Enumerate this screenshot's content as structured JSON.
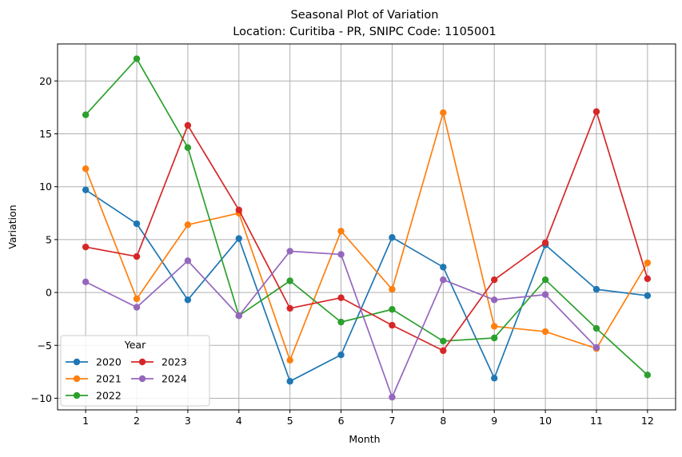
{
  "chart_data": {
    "type": "line",
    "title": "Seasonal Plot of Variation",
    "subtitle": "Location: Curitiba - PR, SNIPC Code: 1105001",
    "xlabel": "Month",
    "ylabel": "Variation",
    "x": [
      1,
      2,
      3,
      4,
      5,
      6,
      7,
      8,
      9,
      10,
      11,
      12
    ],
    "xticks": [
      "1",
      "2",
      "3",
      "4",
      "5",
      "6",
      "7",
      "8",
      "9",
      "10",
      "11",
      "12"
    ],
    "yticks": [
      -10,
      -5,
      0,
      5,
      10,
      15,
      20
    ],
    "ytick_labels": [
      "−10",
      "−5",
      "0",
      "5",
      "10",
      "15",
      "20"
    ],
    "xlim": [
      0.45,
      12.55
    ],
    "ylim": [
      -11.1,
      23.5
    ],
    "grid": true,
    "legend": {
      "title": "Year",
      "position": "lower-left",
      "columns": 2
    },
    "series": [
      {
        "name": "2020",
        "color": "#1f77b4",
        "values": [
          9.7,
          6.5,
          -0.7,
          5.1,
          -8.4,
          -5.9,
          5.2,
          2.4,
          -8.1,
          4.5,
          0.3,
          -0.3
        ]
      },
      {
        "name": "2021",
        "color": "#ff7f0e",
        "values": [
          11.7,
          -0.6,
          6.4,
          7.5,
          -6.4,
          5.8,
          0.3,
          17.0,
          -3.2,
          -3.7,
          -5.3,
          2.8
        ]
      },
      {
        "name": "2022",
        "color": "#2ca02c",
        "values": [
          16.8,
          22.1,
          13.7,
          -2.2,
          1.1,
          -2.8,
          -1.6,
          -4.6,
          -4.3,
          1.2,
          -3.4,
          -7.8
        ]
      },
      {
        "name": "2023",
        "color": "#d62728",
        "values": [
          4.3,
          3.4,
          15.8,
          7.8,
          -1.5,
          -0.5,
          -3.1,
          -5.5,
          1.2,
          4.7,
          17.1,
          1.3
        ]
      },
      {
        "name": "2024",
        "color": "#9467bd",
        "values": [
          1.0,
          -1.4,
          3.0,
          -2.2,
          3.9,
          3.6,
          -9.9,
          1.2,
          -0.7,
          -0.2,
          -5.2,
          null
        ]
      }
    ]
  }
}
